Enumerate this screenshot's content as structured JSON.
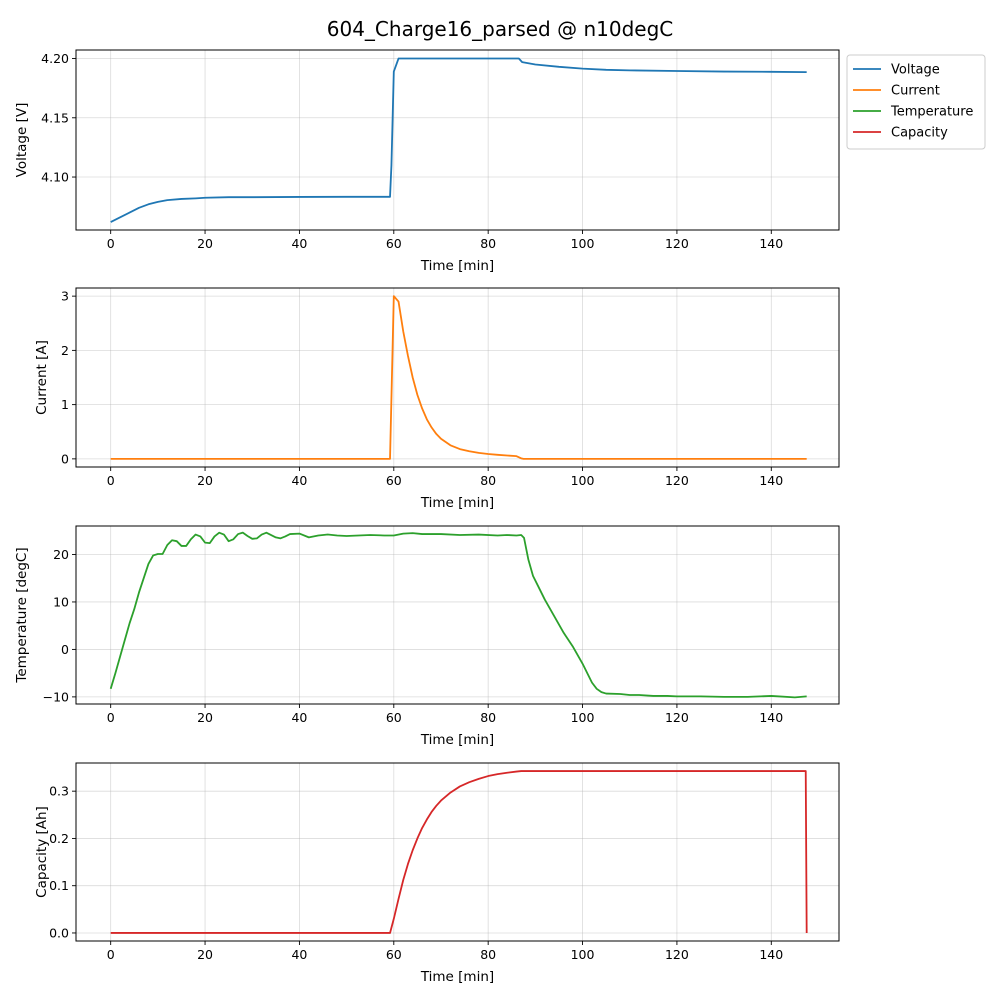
{
  "figure": {
    "title": "604_Charge16_parsed @ n10degC"
  },
  "legend": {
    "placement": "outside-upper-right",
    "entries": [
      {
        "label": "Voltage",
        "color": "#1f77b4"
      },
      {
        "label": "Current",
        "color": "#ff7f0e"
      },
      {
        "label": "Temperature",
        "color": "#2ca02c"
      },
      {
        "label": "Capacity",
        "color": "#d62728"
      }
    ]
  },
  "chart_data": [
    {
      "type": "line",
      "name": "voltage",
      "color": "#1f77b4",
      "xlabel": "Time [min]",
      "ylabel": "Voltage [V]",
      "xlim": [
        -7.35,
        154.35
      ],
      "ylim": [
        4.0553,
        4.2072
      ],
      "xticks": [
        0,
        20,
        40,
        60,
        80,
        100,
        120,
        140
      ],
      "yticks": [
        4.1,
        4.15,
        4.2
      ],
      "ytick_decimals": 2,
      "grid": true,
      "points": [
        [
          0,
          4.062
        ],
        [
          2,
          4.066
        ],
        [
          4,
          4.07
        ],
        [
          6,
          4.074
        ],
        [
          8,
          4.077
        ],
        [
          10,
          4.079
        ],
        [
          12,
          4.0805
        ],
        [
          15,
          4.0815
        ],
        [
          18,
          4.082
        ],
        [
          20,
          4.0825
        ],
        [
          25,
          4.083
        ],
        [
          30,
          4.083
        ],
        [
          40,
          4.0832
        ],
        [
          50,
          4.0833
        ],
        [
          59.2,
          4.0833
        ],
        [
          59.5,
          4.11
        ],
        [
          60,
          4.189
        ],
        [
          61,
          4.2
        ],
        [
          62,
          4.2
        ],
        [
          70,
          4.2
        ],
        [
          80,
          4.2
        ],
        [
          86.5,
          4.2
        ],
        [
          87.2,
          4.197
        ],
        [
          90,
          4.195
        ],
        [
          95,
          4.193
        ],
        [
          100,
          4.1915
        ],
        [
          105,
          4.1905
        ],
        [
          110,
          4.19
        ],
        [
          120,
          4.1895
        ],
        [
          130,
          4.189
        ],
        [
          140,
          4.1888
        ],
        [
          147.5,
          4.1885
        ]
      ]
    },
    {
      "type": "line",
      "name": "current",
      "color": "#ff7f0e",
      "xlabel": "Time [min]",
      "ylabel": "Current [A]",
      "xlim": [
        -7.35,
        154.35
      ],
      "ylim": [
        -0.15,
        3.15
      ],
      "xticks": [
        0,
        20,
        40,
        60,
        80,
        100,
        120,
        140
      ],
      "yticks": [
        0,
        1,
        2,
        3
      ],
      "ytick_decimals": 0,
      "grid": true,
      "points": [
        [
          0,
          0
        ],
        [
          59.2,
          0
        ],
        [
          60,
          3.0
        ],
        [
          61,
          2.9
        ],
        [
          62,
          2.35
        ],
        [
          63,
          1.9
        ],
        [
          64,
          1.5
        ],
        [
          65,
          1.18
        ],
        [
          66,
          0.93
        ],
        [
          67,
          0.73
        ],
        [
          68,
          0.58
        ],
        [
          69,
          0.46
        ],
        [
          70,
          0.37
        ],
        [
          72,
          0.25
        ],
        [
          74,
          0.18
        ],
        [
          76,
          0.14
        ],
        [
          78,
          0.11
        ],
        [
          80,
          0.09
        ],
        [
          82,
          0.075
        ],
        [
          84,
          0.062
        ],
        [
          86,
          0.05
        ],
        [
          87,
          0.01
        ],
        [
          87.5,
          0
        ],
        [
          100,
          0
        ],
        [
          147.5,
          0
        ]
      ]
    },
    {
      "type": "line",
      "name": "temperature",
      "color": "#2ca02c",
      "xlabel": "Time [min]",
      "ylabel": "Temperature [degC]",
      "xlim": [
        -7.35,
        154.35
      ],
      "ylim": [
        -11.5,
        26.0
      ],
      "xticks": [
        0,
        20,
        40,
        60,
        80,
        100,
        120,
        140
      ],
      "yticks": [
        -10,
        0,
        10,
        20
      ],
      "ytick_decimals": 0,
      "grid": true,
      "points": [
        [
          0,
          -8.3
        ],
        [
          1,
          -5
        ],
        [
          2,
          -1.5
        ],
        [
          3,
          2
        ],
        [
          4,
          5.5
        ],
        [
          5,
          8.5
        ],
        [
          6,
          12
        ],
        [
          7,
          15
        ],
        [
          8,
          18
        ],
        [
          9,
          19.8
        ],
        [
          10,
          20.1
        ],
        [
          11,
          20.1
        ],
        [
          12,
          22
        ],
        [
          13,
          23
        ],
        [
          14,
          22.8
        ],
        [
          15,
          21.8
        ],
        [
          16,
          21.8
        ],
        [
          17,
          23.2
        ],
        [
          18,
          24.2
        ],
        [
          19,
          23.8
        ],
        [
          20,
          22.5
        ],
        [
          21,
          22.4
        ],
        [
          22,
          23.8
        ],
        [
          23,
          24.6
        ],
        [
          24,
          24.2
        ],
        [
          25,
          22.8
        ],
        [
          26,
          23.2
        ],
        [
          27,
          24.3
        ],
        [
          28,
          24.6
        ],
        [
          29,
          23.9
        ],
        [
          30,
          23.3
        ],
        [
          31,
          23.4
        ],
        [
          32,
          24.2
        ],
        [
          33,
          24.6
        ],
        [
          34,
          24.1
        ],
        [
          35,
          23.6
        ],
        [
          36,
          23.4
        ],
        [
          37,
          23.8
        ],
        [
          38,
          24.3
        ],
        [
          40,
          24.4
        ],
        [
          42,
          23.6
        ],
        [
          44,
          24.0
        ],
        [
          46,
          24.2
        ],
        [
          48,
          24.0
        ],
        [
          50,
          23.9
        ],
        [
          55,
          24.1
        ],
        [
          58,
          24.0
        ],
        [
          60,
          24.0
        ],
        [
          62,
          24.4
        ],
        [
          64,
          24.5
        ],
        [
          66,
          24.3
        ],
        [
          70,
          24.3
        ],
        [
          74,
          24.1
        ],
        [
          78,
          24.2
        ],
        [
          82,
          24.0
        ],
        [
          84,
          24.1
        ],
        [
          86,
          24.0
        ],
        [
          87,
          24.1
        ],
        [
          87.6,
          23.5
        ],
        [
          88.5,
          19
        ],
        [
          89.5,
          15.5
        ],
        [
          90.5,
          13.5
        ],
        [
          92,
          10.5
        ],
        [
          94,
          7
        ],
        [
          96,
          3.5
        ],
        [
          98,
          0.5
        ],
        [
          100,
          -3
        ],
        [
          101,
          -5
        ],
        [
          102,
          -7
        ],
        [
          103,
          -8.3
        ],
        [
          104,
          -9
        ],
        [
          105,
          -9.3
        ],
        [
          108,
          -9.4
        ],
        [
          110,
          -9.6
        ],
        [
          112,
          -9.6
        ],
        [
          115,
          -9.8
        ],
        [
          118,
          -9.8
        ],
        [
          120,
          -9.9
        ],
        [
          125,
          -9.9
        ],
        [
          130,
          -10
        ],
        [
          135,
          -10
        ],
        [
          140,
          -9.8
        ],
        [
          145,
          -10.1
        ],
        [
          147.5,
          -9.9
        ]
      ]
    },
    {
      "type": "line",
      "name": "capacity",
      "color": "#d62728",
      "xlabel": "Time [min]",
      "ylabel": "Capacity [Ah]",
      "xlim": [
        -7.35,
        154.35
      ],
      "ylim": [
        -0.017,
        0.3596
      ],
      "xticks": [
        0,
        20,
        40,
        60,
        80,
        100,
        120,
        140
      ],
      "yticks": [
        0.0,
        0.1,
        0.2,
        0.3
      ],
      "ytick_decimals": 1,
      "grid": true,
      "points": [
        [
          0,
          0
        ],
        [
          59.2,
          0
        ],
        [
          60,
          0.03
        ],
        [
          61,
          0.072
        ],
        [
          62,
          0.112
        ],
        [
          63,
          0.146
        ],
        [
          64,
          0.175
        ],
        [
          65,
          0.2
        ],
        [
          66,
          0.222
        ],
        [
          67,
          0.24
        ],
        [
          68,
          0.256
        ],
        [
          69,
          0.269
        ],
        [
          70,
          0.28
        ],
        [
          72,
          0.297
        ],
        [
          74,
          0.31
        ],
        [
          76,
          0.319
        ],
        [
          78,
          0.326
        ],
        [
          80,
          0.332
        ],
        [
          82,
          0.336
        ],
        [
          84,
          0.339
        ],
        [
          86,
          0.3415
        ],
        [
          87,
          0.3425
        ],
        [
          100,
          0.3425
        ],
        [
          120,
          0.3425
        ],
        [
          147.3,
          0.3425
        ],
        [
          147.5,
          0
        ]
      ]
    }
  ]
}
